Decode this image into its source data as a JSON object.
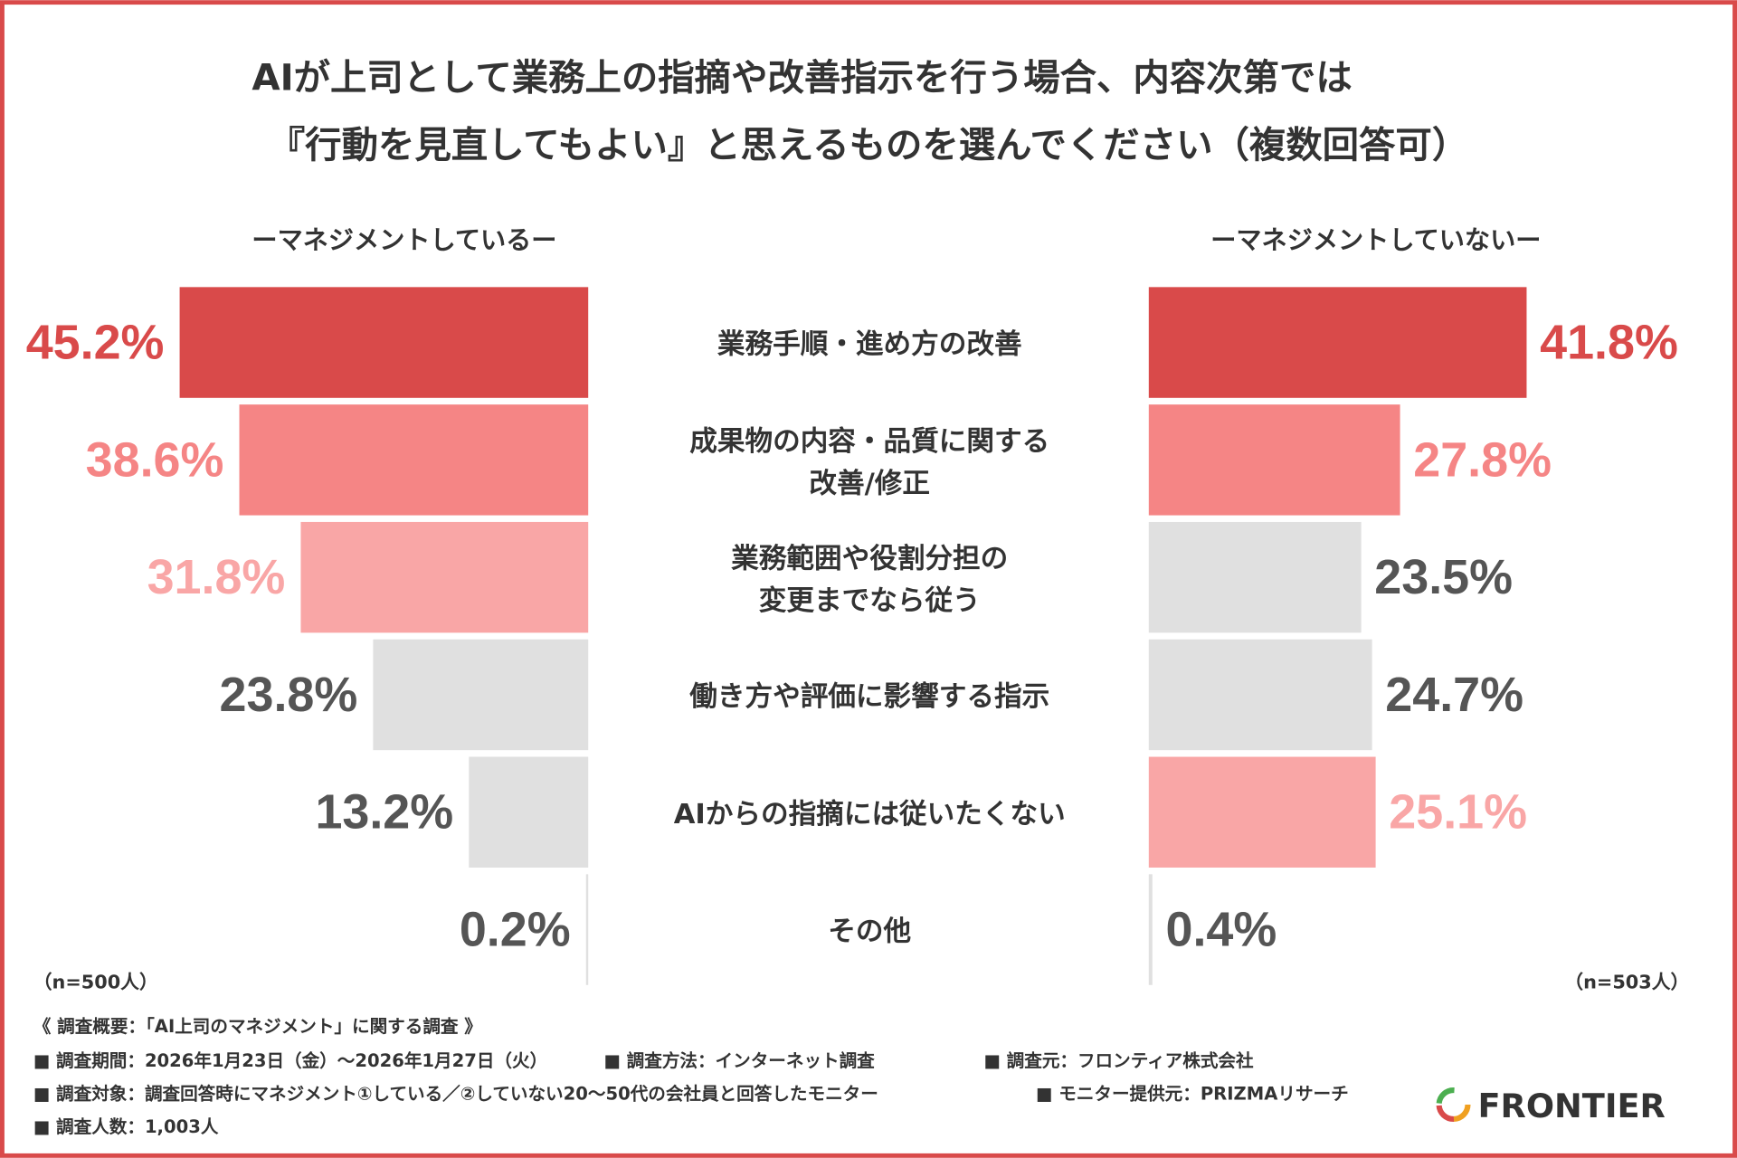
{
  "chart_data": {
    "type": "bar",
    "title": [
      "AIが上司として業務上の指摘や改善指示を行う場合、内容次第では",
      "『行動を見直してもよい』と思えるものを選んでください（複数回答可）"
    ],
    "categories": [
      "業務手順・進め方の改善",
      "成果物の内容・品質に関する\n改善/修正",
      "業務範囲や役割分担の\n変更までなら従う",
      "働き方や評価に影響する指示",
      "AIからの指摘には従いたくない",
      "その他"
    ],
    "xlim": [
      0,
      50
    ],
    "series": [
      {
        "name": "ーマネジメントしているー",
        "side": "left",
        "sample": "（n=500人）",
        "values": [
          45.2,
          38.6,
          31.8,
          23.8,
          13.2,
          0.2
        ],
        "value_labels": [
          "45.2%",
          "38.6%",
          "31.8%",
          "23.8%",
          "13.2%",
          "0.2%"
        ],
        "colors": [
          "#d94a4a",
          "#f58585",
          "#f9a6a6",
          "#e0e0e0",
          "#e0e0e0",
          "#e0e0e0"
        ],
        "label_colors": [
          "#d94a4a",
          "#f58585",
          "#f9a6a6",
          "#555555",
          "#555555",
          "#555555"
        ]
      },
      {
        "name": "ーマネジメントしていないー",
        "side": "right",
        "sample": "（n=503人）",
        "values": [
          41.8,
          27.8,
          23.5,
          24.7,
          25.1,
          0.4
        ],
        "value_labels": [
          "41.8%",
          "27.8%",
          "23.5%",
          "24.7%",
          "25.1%",
          "0.4%"
        ],
        "colors": [
          "#d94a4a",
          "#f58585",
          "#e0e0e0",
          "#e0e0e0",
          "#f9a6a6",
          "#e0e0e0"
        ],
        "label_colors": [
          "#d94a4a",
          "#f58585",
          "#555555",
          "#555555",
          "#f9a6a6",
          "#555555"
        ]
      }
    ]
  },
  "notes": {
    "heading": "《 調査概要：「AI上司のマネジメント」に関する調査 》",
    "rows": [
      [
        "■ 調査期間：2026年1月23日（金）～2026年1月27日（火）",
        "■ 調査方法：インターネット調査",
        "■ 調査元：フロンティア株式会社"
      ],
      [
        "■ 調査対象：調査回答時にマネジメント①している／②していない20～50代の会社員と回答したモニター",
        "■ モニター提供元：PRIZMAリサーチ"
      ],
      [
        "■ 調査人数：1,003人"
      ]
    ]
  },
  "logo": "FRONTIER"
}
